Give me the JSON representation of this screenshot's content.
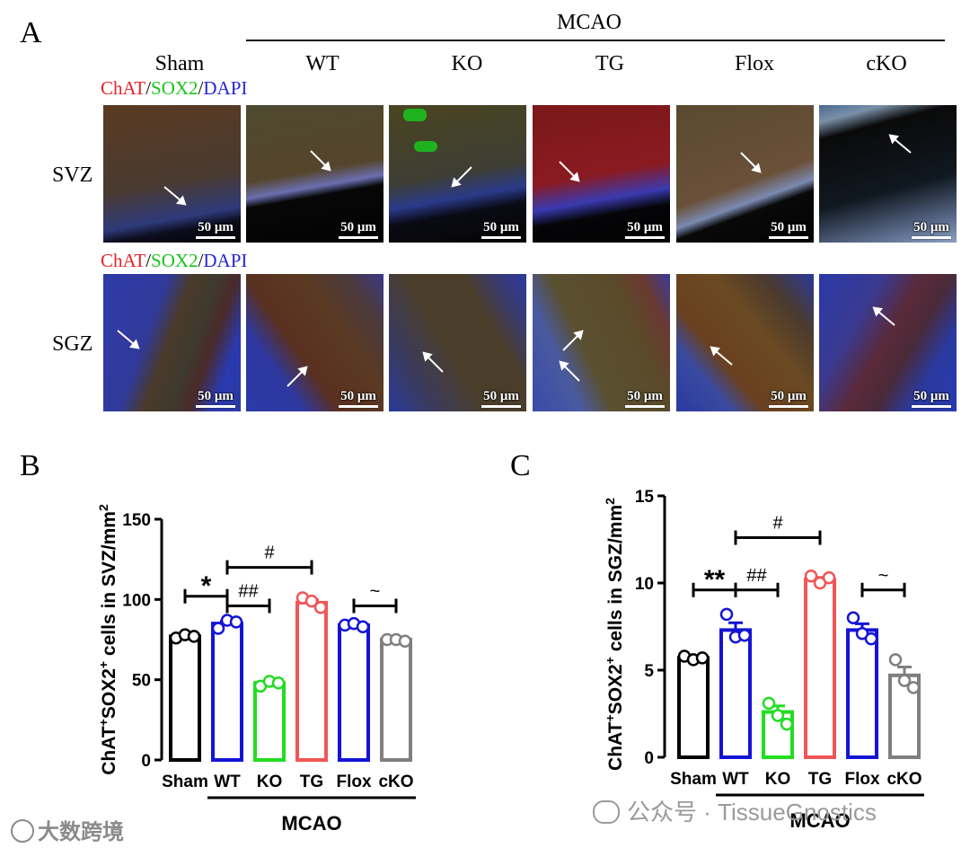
{
  "panel_a": {
    "letter": "A",
    "group_label": "MCAO",
    "columns": [
      "Sham",
      "WT",
      "KO",
      "TG",
      "Flox",
      "cKO"
    ],
    "stain": {
      "chat": "ChAT",
      "sep1": "/",
      "sox2": "SOX2",
      "sep2": "/",
      "dapi": "DAPI"
    },
    "rows": [
      "SVZ",
      "SGZ"
    ],
    "scale_bar": "50 μm",
    "colors": {
      "chat": "#e8222a",
      "sox2": "#19c519",
      "dapi": "#2626d8"
    }
  },
  "chart_data": [
    {
      "type": "bar",
      "panel": "B",
      "ylabel_main": "ChAT",
      "ylabel_sup1": "+",
      "ylabel_mid": "SOX2",
      "ylabel_sup2": "+",
      "ylabel_tail": " cells in SVZ/mm",
      "ylabel_sup3": "2",
      "categories": [
        "Sham",
        "WT",
        "KO",
        "TG",
        "Flox",
        "cKO"
      ],
      "values": [
        77,
        85,
        48,
        98,
        84,
        75
      ],
      "points": [
        [
          76,
          78,
          77
        ],
        [
          82,
          87,
          86
        ],
        [
          46,
          49,
          48
        ],
        [
          101,
          99,
          95
        ],
        [
          84,
          85,
          83
        ],
        [
          75,
          75,
          74
        ]
      ],
      "colors": [
        "#000000",
        "#1414d6",
        "#22dd22",
        "#f05656",
        "#1414d6",
        "#7f7f7f"
      ],
      "ylim": [
        0,
        150
      ],
      "yticks": [
        0,
        50,
        100,
        150
      ],
      "group_label": "MCAO",
      "significance": [
        {
          "from": 0,
          "to": 1,
          "label": "*",
          "level": 102
        },
        {
          "from": 1,
          "to": 2,
          "label": "##",
          "level": 96
        },
        {
          "from": 1,
          "to": 3,
          "label": "#",
          "level": 120
        },
        {
          "from": 4,
          "to": 5,
          "label": "~",
          "level": 96
        }
      ]
    },
    {
      "type": "bar",
      "panel": "C",
      "ylabel_main": "ChAT",
      "ylabel_sup1": "+",
      "ylabel_mid": "SOX2",
      "ylabel_sup2": "+",
      "ylabel_tail": " cells in SGZ/mm",
      "ylabel_sup3": "2",
      "categories": [
        "Sham",
        "WT",
        "KO",
        "TG",
        "Flox",
        "cKO"
      ],
      "values": [
        5.7,
        7.3,
        2.6,
        10.2,
        7.3,
        4.7
      ],
      "points": [
        [
          5.8,
          5.6,
          5.7
        ],
        [
          8.2,
          6.9,
          7.0
        ],
        [
          3.1,
          2.4,
          1.9
        ],
        [
          10.4,
          10.0,
          10.3
        ],
        [
          8.0,
          7.1,
          6.8
        ],
        [
          5.6,
          4.4,
          4.0
        ]
      ],
      "colors": [
        "#000000",
        "#1414d6",
        "#22dd22",
        "#f05656",
        "#1414d6",
        "#7f7f7f"
      ],
      "ylim": [
        0,
        15
      ],
      "yticks": [
        0,
        5,
        10,
        15
      ],
      "group_label": "MCAO",
      "significance": [
        {
          "from": 0,
          "to": 1,
          "label": "**",
          "level": 9.6
        },
        {
          "from": 1,
          "to": 2,
          "label": "##",
          "level": 9.6
        },
        {
          "from": 1,
          "to": 3,
          "label": "#",
          "level": 12.6
        },
        {
          "from": 4,
          "to": 5,
          "label": "~",
          "level": 9.6
        }
      ]
    }
  ],
  "watermarks": {
    "left": "大数跨境",
    "right": "公众号 · TissueGnostics"
  }
}
